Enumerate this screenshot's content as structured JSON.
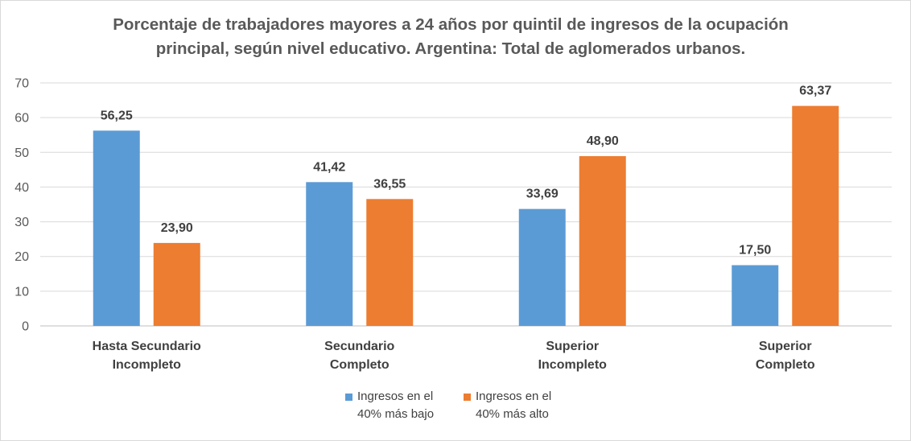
{
  "chart_data": {
    "type": "bar",
    "title_lines": [
      "Porcentaje de trabajadores mayores a 24 años por quintil de ingresos de la ocupación",
      "principal, según nivel educativo. Argentina: Total de aglomerados urbanos."
    ],
    "categories": [
      [
        "Hasta Secundario",
        "Incompleto"
      ],
      [
        "Secundario",
        "Completo"
      ],
      [
        "Superior",
        "Incompleto"
      ],
      [
        "Superior",
        "Completo"
      ]
    ],
    "series": [
      {
        "name": "Ingresos en el 40% más bajo",
        "legend_lines": [
          "Ingresos en el",
          "40% más bajo"
        ],
        "color": "#5b9bd5",
        "values": [
          56.25,
          41.42,
          33.69,
          17.5
        ],
        "labels": [
          "56,25",
          "41,42",
          "33,69",
          "17,50"
        ]
      },
      {
        "name": "Ingresos en el 40% más alto",
        "legend_lines": [
          "Ingresos en el",
          "40% más alto"
        ],
        "color": "#ed7d31",
        "values": [
          23.9,
          36.55,
          48.9,
          63.37
        ],
        "labels": [
          "23,90",
          "36,55",
          "48,90",
          "63,37"
        ]
      }
    ],
    "ylim": [
      0,
      70
    ],
    "yticks": [
      0,
      10,
      20,
      30,
      40,
      50,
      60,
      70
    ],
    "grid": true,
    "legend": "bottom"
  }
}
